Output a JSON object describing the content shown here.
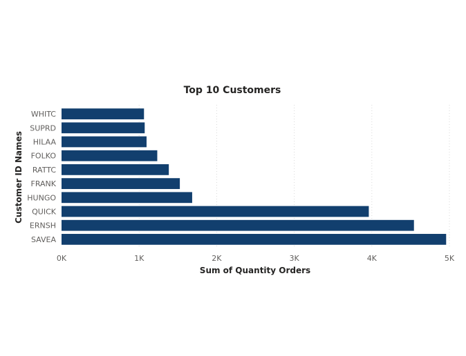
{
  "chart_data": {
    "type": "bar",
    "orientation": "horizontal",
    "title": "Top 10 Customers",
    "xlabel": "Sum of Quantity Orders",
    "ylabel": "Customer ID Names",
    "categories": [
      "WHITC",
      "SUPRD",
      "HILAA",
      "FOLKO",
      "RATTC",
      "FRANK",
      "HUNGO",
      "QUICK",
      "ERNSH",
      "SAVEA"
    ],
    "values": [
      1063,
      1072,
      1096,
      1234,
      1383,
      1525,
      1684,
      3961,
      4543,
      4958
    ],
    "xlim": [
      0,
      5000
    ],
    "xticks": [
      0,
      1000,
      2000,
      3000,
      4000,
      5000
    ],
    "xtick_labels": [
      "0K",
      "1K",
      "2K",
      "3K",
      "4K",
      "5K"
    ],
    "grid": true,
    "legend": "none",
    "bar_color": "#123f6e"
  }
}
